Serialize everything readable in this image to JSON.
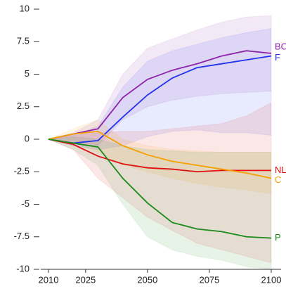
{
  "chart_data": {
    "type": "line",
    "x": [
      2010,
      2020,
      2030,
      2040,
      2050,
      2060,
      2070,
      2080,
      2090,
      2100
    ],
    "xlim": [
      2010,
      2100
    ],
    "xticks": [
      2010,
      2025,
      2050,
      2075,
      2100
    ],
    "ylim": [
      -10,
      10
    ],
    "yticks": [
      10,
      7.5,
      5,
      2.5,
      0,
      -2.5,
      -5,
      -7.5,
      -10
    ],
    "series": [
      {
        "name": "BC",
        "color": "#8e24aa",
        "values": [
          0,
          0.4,
          0.8,
          3.2,
          4.6,
          5.3,
          5.8,
          6.4,
          6.8,
          6.6
        ],
        "upper": [
          0,
          0.5,
          1.5,
          5,
          7,
          7.7,
          8.4,
          9,
          9.4,
          9.5
        ],
        "lower": [
          0,
          -0.3,
          -0.5,
          1.5,
          2.5,
          3,
          3.3,
          3.5,
          3.6,
          3.7
        ]
      },
      {
        "name": "F",
        "color": "#2233ee",
        "values": [
          0,
          -0.3,
          -0.1,
          1.7,
          3.4,
          4.7,
          5.5,
          5.8,
          6.1,
          6.4
        ],
        "upper": [
          0,
          0.3,
          1,
          4,
          6,
          6.8,
          7.3,
          7.8,
          8.2,
          8.5
        ],
        "lower": [
          0,
          -0.5,
          -0.8,
          -0.5,
          0.2,
          0.6,
          0.7,
          0.5,
          0.5,
          0.3
        ]
      },
      {
        "name": "NL",
        "color": "#e01010",
        "values": [
          0,
          -0.4,
          -1.3,
          -1.9,
          -2.2,
          -2.3,
          -2.5,
          -2.4,
          -2.4,
          -2.4
        ],
        "upper": [
          0,
          0.3,
          0.5,
          0.6,
          0.6,
          0.8,
          1,
          1.2,
          1.8,
          2.8
        ],
        "lower": [
          0,
          -0.8,
          -3,
          -4.5,
          -6,
          -7,
          -8,
          -8.5,
          -9,
          -9.5
        ]
      },
      {
        "name": "C",
        "color": "#f5a000",
        "values": [
          0,
          0.4,
          0.6,
          -0.5,
          -1.2,
          -1.7,
          -2,
          -2.3,
          -2.6,
          -3
        ],
        "upper": [
          0,
          0.8,
          1.5,
          0,
          -0.5,
          -0.8,
          -0.9,
          -1,
          -1,
          -1
        ],
        "lower": [
          0,
          -0.2,
          -1,
          -2,
          -2.5,
          -3,
          -3.4,
          -3.7,
          -3.9,
          -4.2
        ]
      },
      {
        "name": "P",
        "color": "#1a8a1a",
        "values": [
          0,
          -0.3,
          -0.6,
          -3,
          -4.9,
          -6.4,
          -6.9,
          -7.1,
          -7.5,
          -7.6
        ],
        "upper": [
          0,
          0.2,
          0,
          -0.5,
          -0.8,
          -0.9,
          -1,
          -1,
          -1,
          -1
        ],
        "lower": [
          0,
          -0.8,
          -2,
          -5,
          -7.5,
          -8.5,
          -9,
          -9.3,
          -9.8,
          -10
        ]
      }
    ]
  }
}
